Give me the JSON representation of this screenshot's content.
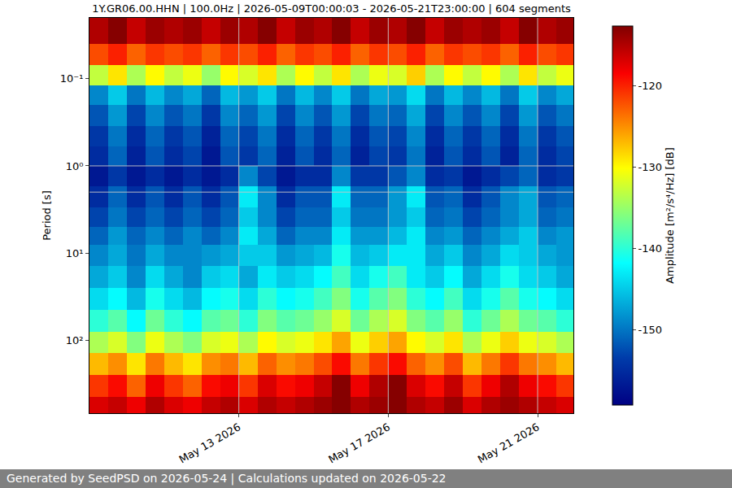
{
  "chart_data": {
    "type": "heatmap",
    "title": "1Y.GR06.00.HHN | 100.0Hz | 2026-05-09T00:00:03 - 2026-05-21T23:00:00 | 604 segments",
    "y_label": "Period [s]",
    "colorbar_title": "Amplitude [m²/s⁴/Hz] [dB]",
    "footer": "Generated by SeedPSD on 2026-05-24 | Calculations updated on 2026-05-22",
    "log": "y",
    "grid": true,
    "xlim": [
      "2026-05-09T00:00:03",
      "2026-05-21T23:00:00"
    ],
    "xticks": [
      {
        "value": "2026-05-13",
        "label": "May 13 2026"
      },
      {
        "value": "2026-05-17",
        "label": "May 17 2026"
      },
      {
        "value": "2026-05-21",
        "label": "May 21 2026"
      }
    ],
    "ylim": [
      690,
      0.02
    ],
    "yticks": [
      {
        "value": 0.1,
        "label": "10⁻¹"
      },
      {
        "value": 1,
        "label": "10⁰"
      },
      {
        "value": 10,
        "label": "10¹"
      },
      {
        "value": 100,
        "label": "10²"
      }
    ],
    "zlim": [
      -159.3,
      -112.7
    ],
    "zticks": [
      -150,
      -140,
      -130,
      -120
    ],
    "x": [
      "2026-05-09T00:00:03",
      "2026-05-09T12:00:00",
      "2026-05-10T00:00:00",
      "2026-05-10T12:00:00",
      "2026-05-11T00:00:00",
      "2026-05-11T12:00:00",
      "2026-05-12T00:00:00",
      "2026-05-12T12:00:00",
      "2026-05-13T00:00:00",
      "2026-05-13T12:00:00",
      "2026-05-14T00:00:00",
      "2026-05-14T12:00:00",
      "2026-05-15T00:00:00",
      "2026-05-15T12:00:00",
      "2026-05-16T00:00:00",
      "2026-05-16T12:00:00",
      "2026-05-17T00:00:00",
      "2026-05-17T12:00:00",
      "2026-05-18T00:00:00",
      "2026-05-18T12:00:00",
      "2026-05-19T00:00:00",
      "2026-05-19T12:00:00",
      "2026-05-20T00:00:00",
      "2026-05-20T12:00:00",
      "2026-05-21T00:00:00",
      "2026-05-21T12:00:00",
      "2026-05-21T23:00:00"
    ],
    "y": [
      0.02,
      0.04,
      0.07,
      0.12,
      0.2,
      0.35,
      0.6,
      1,
      1.7,
      3,
      5,
      8,
      14,
      25,
      45,
      80,
      140,
      250,
      450,
      690
    ],
    "z": [
      [
        -115,
        -113,
        -116,
        -114,
        -115,
        -114,
        -116,
        -114,
        -115,
        -113,
        -116,
        -114,
        -115,
        -113,
        -116,
        -114,
        -115,
        -113,
        -116,
        -114,
        -115,
        -114,
        -116,
        -113,
        -115,
        -114
      ],
      [
        -122,
        -120,
        -123,
        -121,
        -122,
        -121,
        -123,
        -121,
        -122,
        -120,
        -123,
        -121,
        -122,
        -120,
        -123,
        -121,
        -122,
        -120,
        -123,
        -121,
        -122,
        -121,
        -123,
        -120,
        -122,
        -121
      ],
      [
        -133,
        -129,
        -134,
        -130,
        -133,
        -131,
        -135,
        -130,
        -132,
        -129,
        -134,
        -130,
        -133,
        -129,
        -134,
        -131,
        -132,
        -128,
        -134,
        -130,
        -133,
        -130,
        -134,
        -129,
        -133,
        -131
      ],
      [
        -149,
        -145,
        -150,
        -146,
        -149,
        -147,
        -151,
        -146,
        -148,
        -145,
        -150,
        -146,
        -149,
        -145,
        -150,
        -147,
        -148,
        -144,
        -150,
        -146,
        -149,
        -146,
        -150,
        -145,
        -149,
        -147
      ],
      [
        -152,
        -148,
        -153,
        -149,
        -152,
        -150,
        -154,
        -149,
        -151,
        -148,
        -153,
        -149,
        -152,
        -148,
        -153,
        -150,
        -151,
        -147,
        -153,
        -149,
        -152,
        -149,
        -153,
        -148,
        -152,
        -150
      ],
      [
        -154,
        -150,
        -155,
        -151,
        -154,
        -152,
        -156,
        -151,
        -153,
        -150,
        -155,
        -151,
        -154,
        -150,
        -155,
        -152,
        -153,
        -149,
        -155,
        -151,
        -154,
        -151,
        -155,
        -150,
        -154,
        -152
      ],
      [
        -155,
        -151,
        -156,
        -152,
        -155,
        -153,
        -157,
        -152,
        -154,
        -151,
        -156,
        -152,
        -155,
        -151,
        -156,
        -153,
        -154,
        -150,
        -156,
        -152,
        -155,
        -152,
        -156,
        -151,
        -155,
        -153
      ],
      [
        -157,
        -154,
        -157,
        -155,
        -157,
        -155,
        -157,
        -155,
        -149,
        -153,
        -157,
        -155,
        -155,
        -149,
        -154,
        -154,
        -152,
        -149,
        -155,
        -154,
        -157,
        -155,
        -153,
        -151,
        -155,
        -154
      ],
      [
        -155,
        -151,
        -155,
        -152,
        -155,
        -152,
        -155,
        -152,
        -143,
        -149,
        -155,
        -152,
        -152,
        -143,
        -151,
        -151,
        -148,
        -143,
        -152,
        -151,
        -155,
        -152,
        -149,
        -147,
        -152,
        -151
      ],
      [
        -153,
        -150,
        -153,
        -151,
        -153,
        -151,
        -153,
        -151,
        -145,
        -149,
        -153,
        -151,
        -151,
        -145,
        -150,
        -150,
        -148,
        -145,
        -151,
        -150,
        -153,
        -151,
        -149,
        -147,
        -151,
        -150
      ],
      [
        -151,
        -148,
        -151,
        -149,
        -151,
        -149,
        -151,
        -149,
        -143,
        -147,
        -151,
        -149,
        -149,
        -143,
        -148,
        -148,
        -146,
        -143,
        -149,
        -148,
        -151,
        -149,
        -147,
        -145,
        -149,
        -148
      ],
      [
        -149,
        -147,
        -150,
        -147,
        -149,
        -149,
        -148,
        -147,
        -145,
        -145,
        -148,
        -147,
        -146,
        -141,
        -146,
        -145,
        -143,
        -143,
        -147,
        -145,
        -149,
        -147,
        -144,
        -145,
        -147,
        -148
      ],
      [
        -147,
        -145,
        -149,
        -144,
        -147,
        -149,
        -145,
        -144,
        -147,
        -143,
        -145,
        -144,
        -142,
        -139,
        -144,
        -141,
        -139,
        -143,
        -145,
        -142,
        -147,
        -144,
        -141,
        -144,
        -145,
        -147
      ],
      [
        -144,
        -142,
        -146,
        -141,
        -144,
        -146,
        -142,
        -141,
        -144,
        -140,
        -142,
        -141,
        -139,
        -136,
        -141,
        -138,
        -136,
        -140,
        -142,
        -139,
        -144,
        -141,
        -138,
        -141,
        -142,
        -144
      ],
      [
        -140,
        -138,
        -142,
        -137,
        -140,
        -142,
        -138,
        -137,
        -140,
        -136,
        -138,
        -137,
        -135,
        -132,
        -137,
        -134,
        -132,
        -136,
        -138,
        -135,
        -140,
        -137,
        -134,
        -137,
        -138,
        -140
      ],
      [
        -134,
        -132,
        -136,
        -131,
        -134,
        -136,
        -132,
        -131,
        -134,
        -130,
        -132,
        -131,
        -129,
        -126,
        -131,
        -128,
        -126,
        -130,
        -132,
        -129,
        -134,
        -131,
        -128,
        -131,
        -132,
        -134
      ],
      [
        -127,
        -125,
        -129,
        -124,
        -127,
        -129,
        -125,
        -124,
        -127,
        -123,
        -125,
        -124,
        -122,
        -119,
        -124,
        -121,
        -119,
        -123,
        -125,
        -122,
        -127,
        -124,
        -121,
        -124,
        -125,
        -127
      ],
      [
        -121,
        -119,
        -123,
        -118,
        -121,
        -123,
        -119,
        -118,
        -121,
        -117,
        -119,
        -118,
        -116,
        -113,
        -118,
        -115,
        -113,
        -117,
        -119,
        -116,
        -121,
        -118,
        -115,
        -118,
        -119,
        -121
      ],
      [
        -117,
        -116,
        -118,
        -115,
        -117,
        -118,
        -116,
        -115,
        -117,
        -115,
        -116,
        -115,
        -114,
        -113,
        -115,
        -114,
        -113,
        -115,
        -116,
        -114,
        -117,
        -115,
        -114,
        -115,
        -116,
        -117
      ]
    ]
  }
}
